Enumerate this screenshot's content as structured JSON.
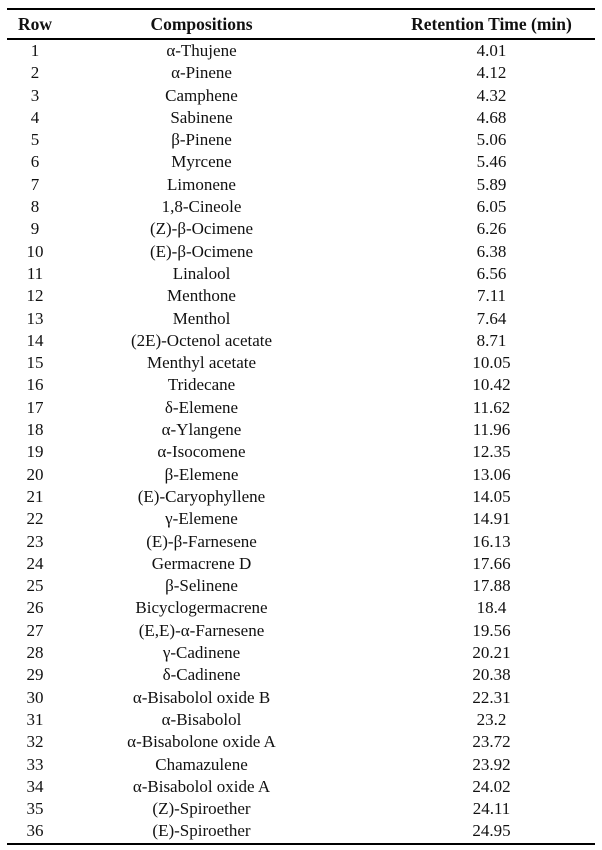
{
  "table": {
    "columns": [
      "Row",
      "Compositions",
      "Retention Time (min)"
    ],
    "rows": [
      [
        "1",
        "α-Thujene",
        "4.01"
      ],
      [
        "2",
        "α-Pinene",
        "4.12"
      ],
      [
        "3",
        "Camphene",
        "4.32"
      ],
      [
        "4",
        "Sabinene",
        "4.68"
      ],
      [
        "5",
        "β-Pinene",
        "5.06"
      ],
      [
        "6",
        "Myrcene",
        "5.46"
      ],
      [
        "7",
        "Limonene",
        "5.89"
      ],
      [
        "8",
        "1,8-Cineole",
        "6.05"
      ],
      [
        "9",
        "(Z)-β-Ocimene",
        "6.26"
      ],
      [
        "10",
        "(E)-β-Ocimene",
        "6.38"
      ],
      [
        "11",
        "Linalool",
        "6.56"
      ],
      [
        "12",
        "Menthone",
        "7.11"
      ],
      [
        "13",
        "Menthol",
        "7.64"
      ],
      [
        "14",
        "(2E)-Octenol acetate",
        "8.71"
      ],
      [
        "15",
        "Menthyl acetate",
        "10.05"
      ],
      [
        "16",
        "Tridecane",
        "10.42"
      ],
      [
        "17",
        "δ-Elemene",
        "11.62"
      ],
      [
        "18",
        "α-Ylangene",
        "11.96"
      ],
      [
        "19",
        "α-Isocomene",
        "12.35"
      ],
      [
        "20",
        "β-Elemene",
        "13.06"
      ],
      [
        "21",
        "(E)-Caryophyllene",
        "14.05"
      ],
      [
        "22",
        "γ-Elemene",
        "14.91"
      ],
      [
        "23",
        "(E)-β-Farnesene",
        "16.13"
      ],
      [
        "24",
        "Germacrene D",
        "17.66"
      ],
      [
        "25",
        "β-Selinene",
        "17.88"
      ],
      [
        "26",
        "Bicyclogermacrene",
        "18.4"
      ],
      [
        "27",
        "(E,E)-α-Farnesene",
        "19.56"
      ],
      [
        "28",
        "γ-Cadinene",
        "20.21"
      ],
      [
        "29",
        "δ-Cadinene",
        "20.38"
      ],
      [
        "30",
        "α-Bisabolol oxide B",
        "22.31"
      ],
      [
        "31",
        "α-Bisabolol",
        "23.2"
      ],
      [
        "32",
        "α-Bisabolone oxide A",
        "23.72"
      ],
      [
        "33",
        "Chamazulene",
        "23.92"
      ],
      [
        "34",
        "α-Bisabolol oxide A",
        "24.02"
      ],
      [
        "35",
        "(Z)-Spiroether",
        "24.11"
      ],
      [
        "36",
        "(E)-Spiroether",
        "24.95"
      ]
    ]
  }
}
